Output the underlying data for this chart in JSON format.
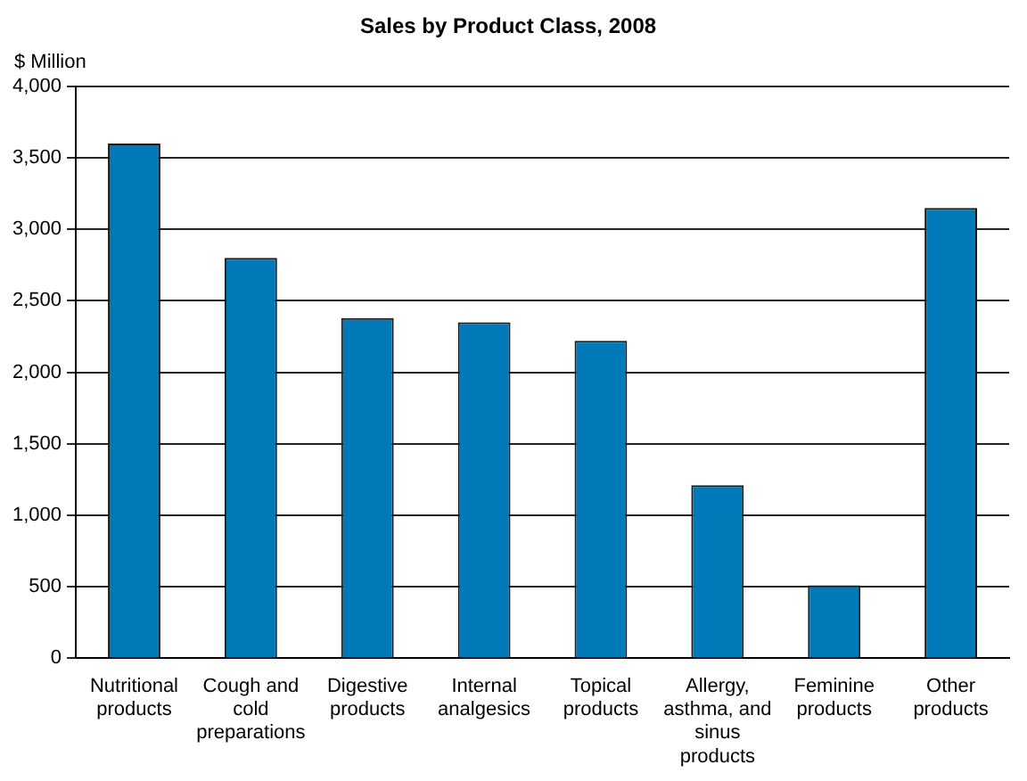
{
  "chart_data": {
    "type": "bar",
    "title": "Sales by Product Class, 2008",
    "ylabel": "$ Million",
    "categories": [
      "Nutritional products",
      "Cough and cold preparations",
      "Digestive products",
      "Internal analgesics",
      "Topical products",
      "Allergy, asthma, and sinus products",
      "Feminine products",
      "Other products"
    ],
    "values": [
      3600,
      2800,
      2380,
      2350,
      2220,
      1210,
      510,
      3150
    ],
    "color": "#0079b8",
    "ylim": [
      0,
      4000
    ],
    "yticks": [
      0,
      500,
      {
        "value": 1000,
        "label": "1,000"
      },
      {
        "value": 1500,
        "label": "1,500"
      },
      {
        "value": 2000,
        "label": "2,000"
      },
      {
        "value": 2500,
        "label": "2,500"
      },
      {
        "value": 3000,
        "label": "3,000"
      },
      {
        "value": 3500,
        "label": "3,500"
      },
      {
        "value": 4000,
        "label": "4,000"
      }
    ],
    "grid": "y"
  }
}
